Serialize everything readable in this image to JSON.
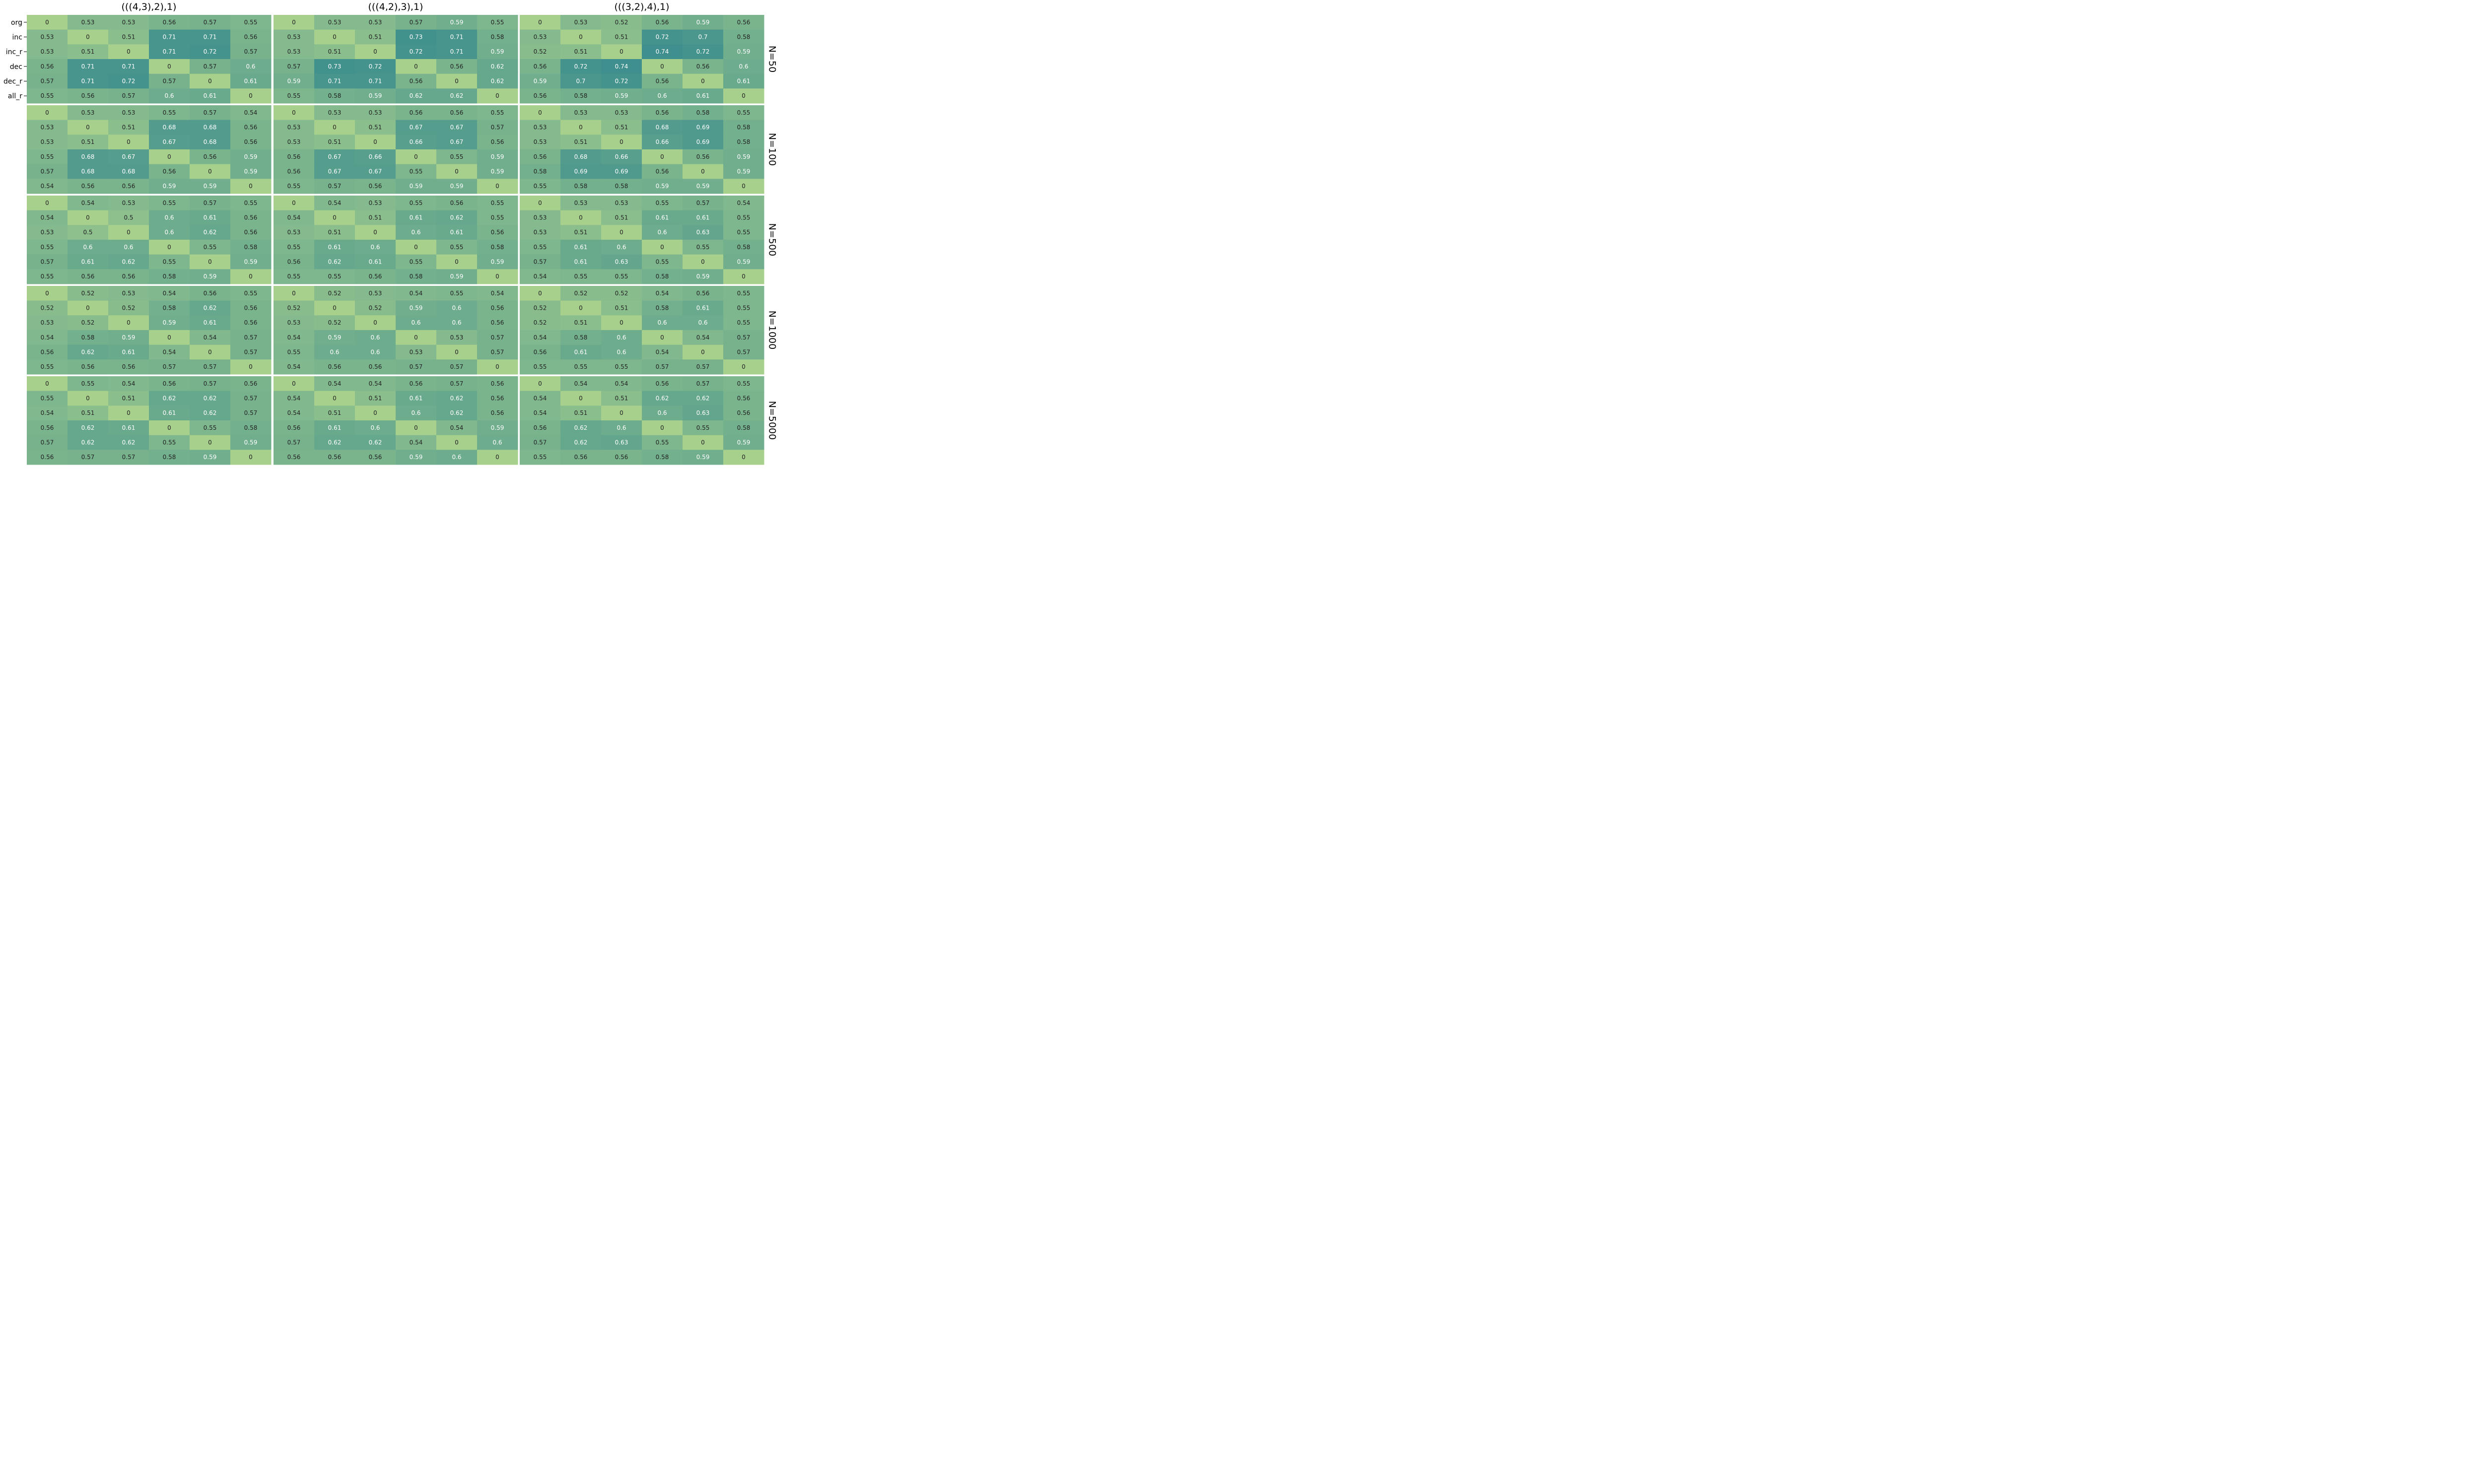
{
  "chart_data": {
    "type": "heatmap",
    "column_titles": [
      "(((4,3),2),1)",
      "(((4,2),3),1)",
      "(((3,2),4),1)"
    ],
    "row_facet_labels": [
      "N=50",
      "N=100",
      "N=500",
      "N=1000",
      "N=5000"
    ],
    "row_labels": [
      "org",
      "inc",
      "inc_r",
      "dec",
      "dec_r",
      "all_r"
    ],
    "color_range": [
      0,
      0.74
    ],
    "colormap": [
      "#a8d08d",
      "#3e8f8d"
    ],
    "panels": [
      [
        [
          [
            0,
            0.53,
            0.53,
            0.56,
            0.57,
            0.55
          ],
          [
            0.53,
            0,
            0.51,
            0.71,
            0.71,
            0.56
          ],
          [
            0.53,
            0.51,
            0,
            0.71,
            0.72,
            0.57
          ],
          [
            0.56,
            0.71,
            0.71,
            0,
            0.57,
            0.6
          ],
          [
            0.57,
            0.71,
            0.72,
            0.57,
            0,
            0.61
          ],
          [
            0.55,
            0.56,
            0.57,
            0.6,
            0.61,
            0
          ]
        ],
        [
          [
            0,
            0.53,
            0.53,
            0.57,
            0.59,
            0.55
          ],
          [
            0.53,
            0,
            0.51,
            0.73,
            0.71,
            0.58
          ],
          [
            0.53,
            0.51,
            0,
            0.72,
            0.71,
            0.59
          ],
          [
            0.57,
            0.73,
            0.72,
            0,
            0.56,
            0.62
          ],
          [
            0.59,
            0.71,
            0.71,
            0.56,
            0,
            0.62
          ],
          [
            0.55,
            0.58,
            0.59,
            0.62,
            0.62,
            0
          ]
        ],
        [
          [
            0,
            0.53,
            0.52,
            0.56,
            0.59,
            0.56
          ],
          [
            0.53,
            0,
            0.51,
            0.72,
            0.7,
            0.58
          ],
          [
            0.52,
            0.51,
            0,
            0.74,
            0.72,
            0.59
          ],
          [
            0.56,
            0.72,
            0.74,
            0,
            0.56,
            0.6
          ],
          [
            0.59,
            0.7,
            0.72,
            0.56,
            0,
            0.61
          ],
          [
            0.56,
            0.58,
            0.59,
            0.6,
            0.61,
            0
          ]
        ]
      ],
      [
        [
          [
            0,
            0.53,
            0.53,
            0.55,
            0.57,
            0.54
          ],
          [
            0.53,
            0,
            0.51,
            0.68,
            0.68,
            0.56
          ],
          [
            0.53,
            0.51,
            0,
            0.67,
            0.68,
            0.56
          ],
          [
            0.55,
            0.68,
            0.67,
            0,
            0.56,
            0.59
          ],
          [
            0.57,
            0.68,
            0.68,
            0.56,
            0,
            0.59
          ],
          [
            0.54,
            0.56,
            0.56,
            0.59,
            0.59,
            0
          ]
        ],
        [
          [
            0,
            0.53,
            0.53,
            0.56,
            0.56,
            0.55
          ],
          [
            0.53,
            0,
            0.51,
            0.67,
            0.67,
            0.57
          ],
          [
            0.53,
            0.51,
            0,
            0.66,
            0.67,
            0.56
          ],
          [
            0.56,
            0.67,
            0.66,
            0,
            0.55,
            0.59
          ],
          [
            0.56,
            0.67,
            0.67,
            0.55,
            0,
            0.59
          ],
          [
            0.55,
            0.57,
            0.56,
            0.59,
            0.59,
            0
          ]
        ],
        [
          [
            0,
            0.53,
            0.53,
            0.56,
            0.58,
            0.55
          ],
          [
            0.53,
            0,
            0.51,
            0.68,
            0.69,
            0.58
          ],
          [
            0.53,
            0.51,
            0,
            0.66,
            0.69,
            0.58
          ],
          [
            0.56,
            0.68,
            0.66,
            0,
            0.56,
            0.59
          ],
          [
            0.58,
            0.69,
            0.69,
            0.56,
            0,
            0.59
          ],
          [
            0.55,
            0.58,
            0.58,
            0.59,
            0.59,
            0
          ]
        ]
      ],
      [
        [
          [
            0,
            0.54,
            0.53,
            0.55,
            0.57,
            0.55
          ],
          [
            0.54,
            0,
            0.5,
            0.6,
            0.61,
            0.56
          ],
          [
            0.53,
            0.5,
            0,
            0.6,
            0.62,
            0.56
          ],
          [
            0.55,
            0.6,
            0.6,
            0,
            0.55,
            0.58
          ],
          [
            0.57,
            0.61,
            0.62,
            0.55,
            0,
            0.59
          ],
          [
            0.55,
            0.56,
            0.56,
            0.58,
            0.59,
            0
          ]
        ],
        [
          [
            0,
            0.54,
            0.53,
            0.55,
            0.56,
            0.55
          ],
          [
            0.54,
            0,
            0.51,
            0.61,
            0.62,
            0.55
          ],
          [
            0.53,
            0.51,
            0,
            0.6,
            0.61,
            0.56
          ],
          [
            0.55,
            0.61,
            0.6,
            0,
            0.55,
            0.58
          ],
          [
            0.56,
            0.62,
            0.61,
            0.55,
            0,
            0.59
          ],
          [
            0.55,
            0.55,
            0.56,
            0.58,
            0.59,
            0
          ]
        ],
        [
          [
            0,
            0.53,
            0.53,
            0.55,
            0.57,
            0.54
          ],
          [
            0.53,
            0,
            0.51,
            0.61,
            0.61,
            0.55
          ],
          [
            0.53,
            0.51,
            0,
            0.6,
            0.63,
            0.55
          ],
          [
            0.55,
            0.61,
            0.6,
            0,
            0.55,
            0.58
          ],
          [
            0.57,
            0.61,
            0.63,
            0.55,
            0,
            0.59
          ],
          [
            0.54,
            0.55,
            0.55,
            0.58,
            0.59,
            0
          ]
        ]
      ],
      [
        [
          [
            0,
            0.52,
            0.53,
            0.54,
            0.56,
            0.55
          ],
          [
            0.52,
            0,
            0.52,
            0.58,
            0.62,
            0.56
          ],
          [
            0.53,
            0.52,
            0,
            0.59,
            0.61,
            0.56
          ],
          [
            0.54,
            0.58,
            0.59,
            0,
            0.54,
            0.57
          ],
          [
            0.56,
            0.62,
            0.61,
            0.54,
            0,
            0.57
          ],
          [
            0.55,
            0.56,
            0.56,
            0.57,
            0.57,
            0
          ]
        ],
        [
          [
            0,
            0.52,
            0.53,
            0.54,
            0.55,
            0.54
          ],
          [
            0.52,
            0,
            0.52,
            0.59,
            0.6,
            0.56
          ],
          [
            0.53,
            0.52,
            0,
            0.6,
            0.6,
            0.56
          ],
          [
            0.54,
            0.59,
            0.6,
            0,
            0.53,
            0.57
          ],
          [
            0.55,
            0.6,
            0.6,
            0.53,
            0,
            0.57
          ],
          [
            0.54,
            0.56,
            0.56,
            0.57,
            0.57,
            0
          ]
        ],
        [
          [
            0,
            0.52,
            0.52,
            0.54,
            0.56,
            0.55
          ],
          [
            0.52,
            0,
            0.51,
            0.58,
            0.61,
            0.55
          ],
          [
            0.52,
            0.51,
            0,
            0.6,
            0.6,
            0.55
          ],
          [
            0.54,
            0.58,
            0.6,
            0,
            0.54,
            0.57
          ],
          [
            0.56,
            0.61,
            0.6,
            0.54,
            0,
            0.57
          ],
          [
            0.55,
            0.55,
            0.55,
            0.57,
            0.57,
            0
          ]
        ]
      ],
      [
        [
          [
            0,
            0.55,
            0.54,
            0.56,
            0.57,
            0.56
          ],
          [
            0.55,
            0,
            0.51,
            0.62,
            0.62,
            0.57
          ],
          [
            0.54,
            0.51,
            0,
            0.61,
            0.62,
            0.57
          ],
          [
            0.56,
            0.62,
            0.61,
            0,
            0.55,
            0.58
          ],
          [
            0.57,
            0.62,
            0.62,
            0.55,
            0,
            0.59
          ],
          [
            0.56,
            0.57,
            0.57,
            0.58,
            0.59,
            0
          ]
        ],
        [
          [
            0,
            0.54,
            0.54,
            0.56,
            0.57,
            0.56
          ],
          [
            0.54,
            0,
            0.51,
            0.61,
            0.62,
            0.56
          ],
          [
            0.54,
            0.51,
            0,
            0.6,
            0.62,
            0.56
          ],
          [
            0.56,
            0.61,
            0.6,
            0,
            0.54,
            0.59
          ],
          [
            0.57,
            0.62,
            0.62,
            0.54,
            0,
            0.6
          ],
          [
            0.56,
            0.56,
            0.56,
            0.59,
            0.6,
            0
          ]
        ],
        [
          [
            0,
            0.54,
            0.54,
            0.56,
            0.57,
            0.55
          ],
          [
            0.54,
            0,
            0.51,
            0.62,
            0.62,
            0.56
          ],
          [
            0.54,
            0.51,
            0,
            0.6,
            0.63,
            0.56
          ],
          [
            0.56,
            0.62,
            0.6,
            0,
            0.55,
            0.58
          ],
          [
            0.57,
            0.62,
            0.63,
            0.55,
            0,
            0.59
          ],
          [
            0.55,
            0.56,
            0.56,
            0.58,
            0.59,
            0
          ]
        ]
      ]
    ]
  }
}
